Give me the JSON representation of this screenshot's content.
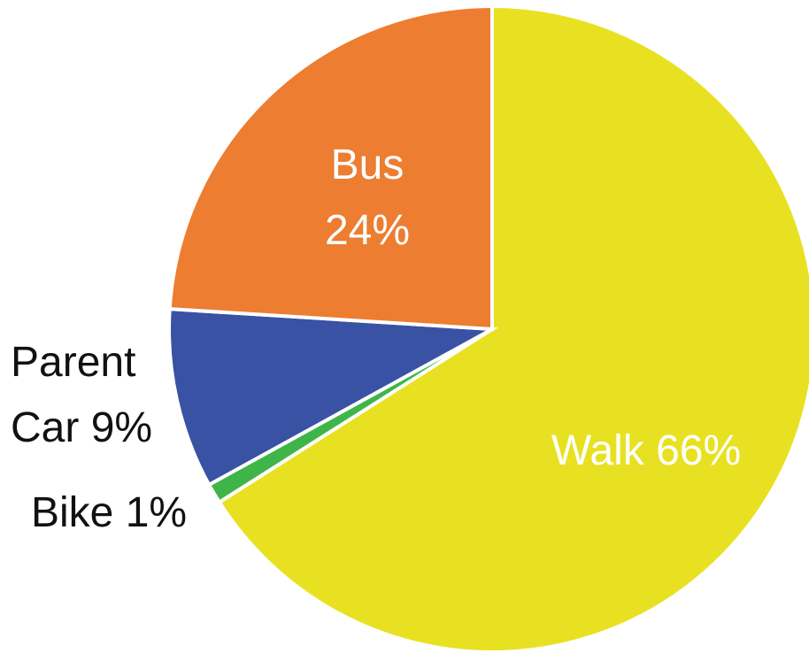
{
  "chart_data": {
    "type": "pie",
    "categories": [
      "Walk",
      "Bike",
      "Parent Car",
      "Bus"
    ],
    "values": [
      66,
      1,
      9,
      24
    ],
    "value_labels": [
      "66%",
      "1%",
      "9%",
      "24%"
    ],
    "colors": [
      "#e8e122",
      "#3fb549",
      "#3a52a3",
      "#ed7d31"
    ]
  }
}
